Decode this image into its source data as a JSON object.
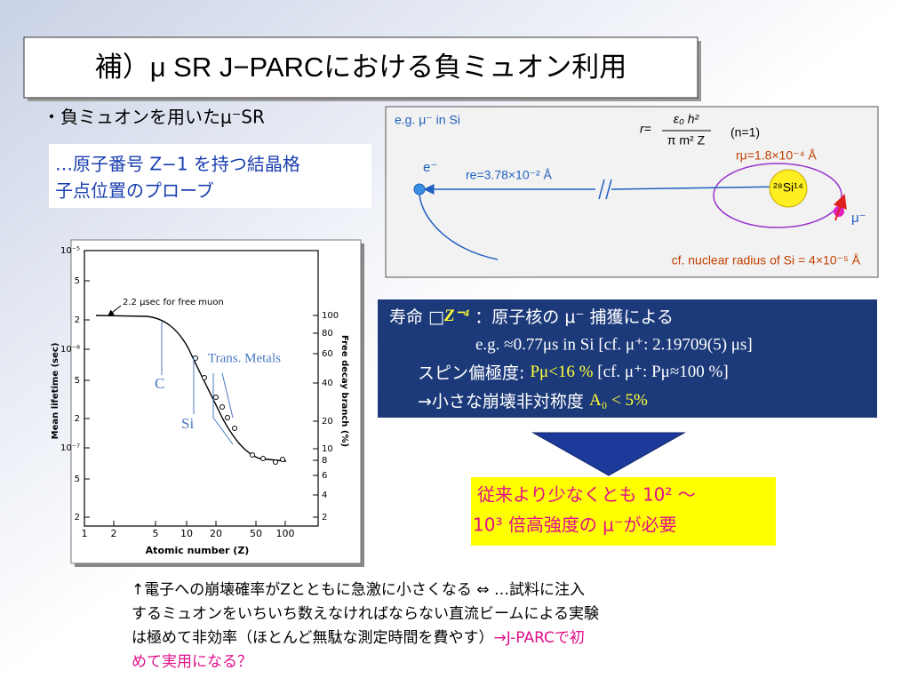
{
  "title": "補）μ SR J−PARCにおける負ミュオン利用",
  "bullet": "・負ミュオンを用いたμ⁻SR",
  "note_box": {
    "lines": [
      "…原子番号 Z−1 を持つ結晶格",
      "子点位置のプローブ"
    ]
  },
  "figure": {
    "y_axis_label": "Mean lifetime (sec)",
    "y2_axis_label": "Free decay branch (%)",
    "x_axis_label": "Atomic number (Z)",
    "y_ticks": [
      "10⁻⁵",
      "5",
      "2",
      "10⁻⁶",
      "5",
      "2",
      "10⁻⁷",
      "5",
      "2"
    ],
    "y2_ticks": [
      "100",
      "80",
      "60",
      "40",
      "20",
      "10",
      "8",
      "6",
      "4",
      "2"
    ],
    "x_ticks": [
      "1",
      "2",
      "5",
      "10",
      "20",
      "50",
      "100"
    ],
    "free_muon_note": "2.2 μsec for free muon",
    "labels": {
      "trans_metals": "Trans. Metals",
      "carbon": "C",
      "silicon": "Si"
    }
  },
  "diagram": {
    "example": "e.g. μ⁻ in Si",
    "formula_lhs": "r=",
    "formula_num": "ε₀ h²",
    "formula_den": "π m² Z",
    "formula_cond": "(n=1)",
    "muon_radius": "rμ=1.8×10⁻⁴ Å",
    "electron": "e⁻",
    "electron_radius": "re=3.78×10⁻² Å",
    "nucleus": "²⁸Si¹⁴",
    "muon": "μ⁻",
    "nuclear_radius": "cf. nuclear radius of Si = 4×10⁻⁵ Å"
  },
  "lifetime_box": {
    "line1": [
      "寿命 □",
      "Z⁻⁴",
      " ：原子核の μ⁻ 捕獲による"
    ],
    "line2": "e.g.  ≈0.77μs in Si  [cf. μ⁺:  2.19709(5) μs]",
    "line3": [
      "スピン偏極度: ",
      "Pμ<16 %",
      "    [cf. μ⁺: Pμ≈100 %]"
    ],
    "line4": [
      "→小さな崩壊非対称度 ",
      "A₀ < 5%"
    ]
  },
  "result_box": {
    "lines": [
      "従来より少なくとも 10² 〜",
      "10³ 倍高強度の μ⁻が必要"
    ]
  },
  "footer": {
    "line1": "↑電子への崩壊確率がZとともに急激に小さくなる ⇔ …試料に注入",
    "line2": "するミュオンをいちいち数えなければならない直流ビームによる実験",
    "line3": [
      "は極めて非効率（ほとんど無駄な測定時間を費やす）",
      "→J-PARCで初"
    ],
    "line4": "めて実用になる？"
  }
}
